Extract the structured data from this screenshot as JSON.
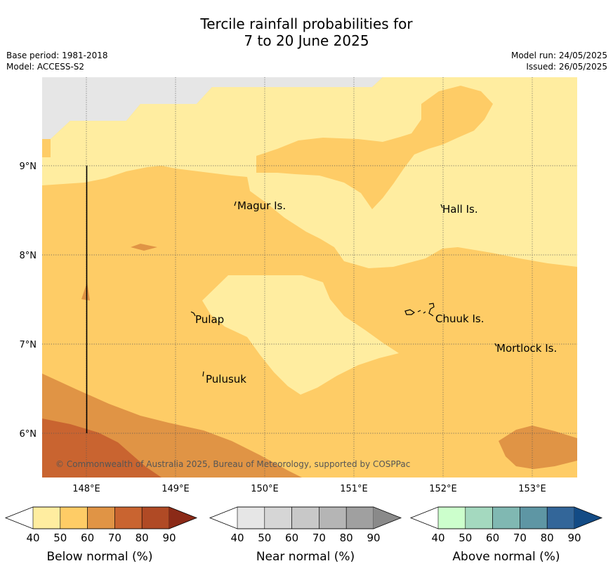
{
  "title": {
    "line1": "Tercile rainfall probabilities for",
    "line2": "7 to 20 June 2025"
  },
  "meta": {
    "base_period": "Base period: 1981-2018",
    "model": "Model: ACCESS-S2",
    "model_run": "Model run: 24/05/2025",
    "issued": "Issued: 26/05/2025"
  },
  "map": {
    "x_ticks": [
      "148°E",
      "149°E",
      "150°E",
      "151°E",
      "152°E",
      "153°E"
    ],
    "y_ticks": [
      "9°N",
      "8°N",
      "7°N",
      "6°N"
    ],
    "places": [
      "Magur Is.",
      "Hall Is.",
      "Pulap",
      "Chuuk Is.",
      "Mortlock Is.",
      "Pulusuk"
    ],
    "copyright": "© Commonwealth of Australia 2025, Bureau of Meteorology, supported by COSPPac"
  },
  "colorbars": [
    {
      "title": "Below normal (%)",
      "ticks": [
        "40",
        "50",
        "60",
        "70",
        "80",
        "90"
      ],
      "colors": [
        "#ffeda0",
        "#fecc66",
        "#e09445",
        "#c96430",
        "#b04a25",
        "#8b2a17"
      ]
    },
    {
      "title": "Near normal (%)",
      "ticks": [
        "40",
        "50",
        "60",
        "70",
        "80",
        "90"
      ],
      "colors": [
        "#e6e6e6",
        "#d6d6d6",
        "#c8c8c8",
        "#b5b5b5",
        "#a0a0a0",
        "#8a8a8a"
      ]
    },
    {
      "title": "Above normal (%)",
      "ticks": [
        "40",
        "50",
        "60",
        "70",
        "80",
        "90"
      ],
      "colors": [
        "#ccffcc",
        "#a4d9bf",
        "#80b8b2",
        "#5e96a4",
        "#336699",
        "#134b85"
      ]
    }
  ]
}
